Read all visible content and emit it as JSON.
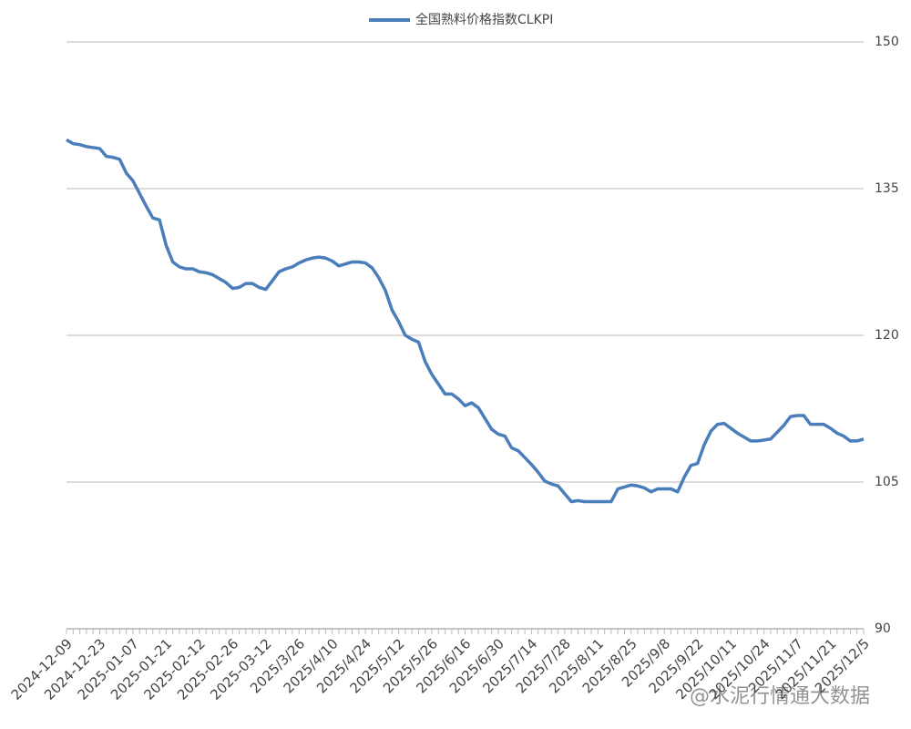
{
  "chart_data": {
    "type": "line",
    "categories": [
      "2024-12-09",
      null,
      null,
      null,
      null,
      "2024-12-23",
      null,
      null,
      null,
      null,
      "2025-01-07",
      null,
      null,
      null,
      null,
      "2025-01-21",
      null,
      null,
      null,
      null,
      "2025-02-12",
      null,
      null,
      null,
      null,
      "2025-02-26",
      null,
      null,
      null,
      null,
      "2025-03-12",
      null,
      null,
      null,
      null,
      "2025/3/26",
      null,
      null,
      null,
      null,
      "2025/4/10",
      null,
      null,
      null,
      null,
      "2025/4/24",
      null,
      null,
      null,
      null,
      "2025/5/12",
      null,
      null,
      null,
      null,
      "2025/5/26",
      null,
      null,
      null,
      null,
      "2025/6/16",
      null,
      null,
      null,
      null,
      "2025/6/30",
      null,
      null,
      null,
      null,
      "2025/7/14",
      null,
      null,
      null,
      null,
      "2025/7/28",
      null,
      null,
      null,
      null,
      "2025/8/11",
      null,
      null,
      null,
      null,
      "2025/8/25",
      null,
      null,
      null,
      null,
      "2025/9/8",
      null,
      null,
      null,
      null,
      "2025/9/22",
      null,
      null,
      null,
      null,
      "2025/10/11",
      null,
      null,
      null,
      null,
      "2025/10/24",
      null,
      null,
      null,
      null,
      "2025/11/7",
      null,
      null,
      null,
      null,
      "2025/11/21",
      null,
      null,
      null,
      null,
      "2025/12/5"
    ],
    "series": [
      {
        "name": "全国熟料价格指数CLKPI",
        "color": "#4a7ebb",
        "values": [
          140.0,
          139.6,
          139.5,
          139.3,
          139.2,
          139.1,
          138.3,
          138.2,
          138.0,
          136.6,
          135.8,
          134.5,
          133.2,
          132.0,
          131.8,
          129.2,
          127.5,
          127.0,
          126.8,
          126.8,
          126.5,
          126.4,
          126.2,
          125.8,
          125.4,
          124.8,
          124.9,
          125.3,
          125.3,
          124.9,
          124.7,
          125.6,
          126.5,
          126.8,
          127.0,
          127.4,
          127.7,
          127.9,
          128.0,
          127.9,
          127.6,
          127.1,
          127.3,
          127.5,
          127.5,
          127.4,
          126.9,
          125.9,
          124.6,
          122.6,
          121.4,
          120.0,
          119.6,
          119.3,
          117.3,
          116.0,
          115.0,
          114.0,
          114.0,
          113.5,
          112.8,
          113.1,
          112.6,
          111.5,
          110.4,
          109.9,
          109.7,
          108.5,
          108.2,
          107.5,
          106.8,
          106.0,
          105.1,
          104.8,
          104.6,
          103.8,
          103.0,
          103.1,
          103.0,
          103.0,
          103.0,
          103.0,
          103.0,
          104.3,
          104.5,
          104.7,
          104.6,
          104.4,
          104.0,
          104.3,
          104.3,
          104.3,
          104.0,
          105.5,
          106.7,
          106.9,
          108.8,
          110.2,
          110.9,
          111.0,
          110.5,
          110.0,
          109.6,
          109.2,
          109.2,
          109.3,
          109.4,
          110.1,
          110.8,
          111.7,
          111.8,
          111.8,
          110.9,
          110.9,
          110.9,
          110.5,
          110.0,
          109.7,
          109.2,
          109.2,
          109.4
        ]
      }
    ],
    "ylim": [
      90,
      150
    ],
    "yticks": [
      90,
      105,
      120,
      135,
      150
    ],
    "grid": true,
    "legend": "top",
    "annotations": [
      "@水泥行情通大数据"
    ]
  }
}
